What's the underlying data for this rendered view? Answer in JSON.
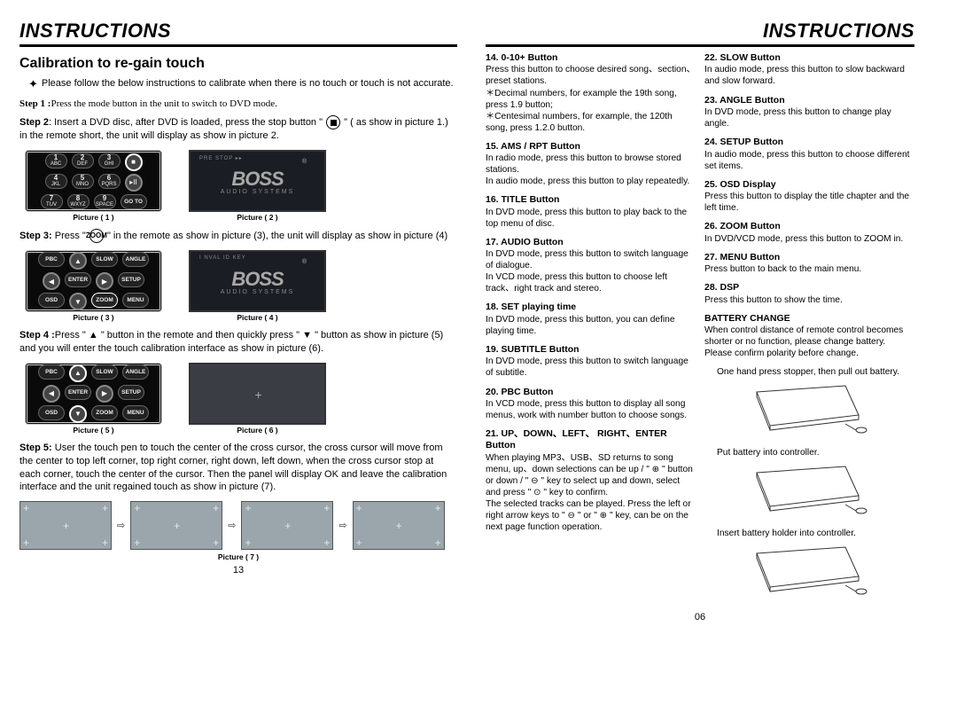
{
  "left": {
    "header": "INSTRUCTIONS",
    "subhead": "Calibration to re-gain touch",
    "intro": "Please follow the below instructions to calibrate when there is no touch or touch is not accurate.",
    "step1_label": "Step 1 :",
    "step1": "Press the mode button in the unit to switch to DVD mode.",
    "step2_label": "Step 2",
    "step2_a": ": Insert a DVD disc, after DVD is loaded, press the stop button  \" ",
    "step2_b": " \" ( as show in picture 1.) in the remote short, the unit will display as show in picture 2.",
    "step3_label": "Step 3:",
    "step3_a": " Press \" ",
    "step3_b": " \" in the remote as show in picture (3), the unit will display as show in picture (4)",
    "step4_label": "Step 4 :",
    "step4": "Press \" ▲ \" button in the remote and then quickly press \" ▼ \" button as show in picture (5)  and you will enter the touch calibration interface as show in picture (6).",
    "step5_label": "Step 5:",
    "step5": " User the touch pen to touch the center of the cross cursor, the cross cursor will move from the center to top left corner, top right corner, right down, left down, when the cross cursor stop at each corner, touch the center of the cursor.  Then the panel will display OK and leave the calibration interface and the unit regained touch as show in picture (7).",
    "pic1": "Picture ( 1 )",
    "pic2": "Picture ( 2 )",
    "pic3": "Picture ( 3 )",
    "pic4": "Picture ( 4 )",
    "pic5": "Picture ( 5 )",
    "pic6": "Picture ( 6 )",
    "pic7": "Picture ( 7 )",
    "pre_stop": "PRE  STOP  ▸▸",
    "inval": "I NVAL ID KEY",
    "boss": "BOSS",
    "audio_systems": "AUDIO SYSTEMS",
    "pagenum": "13"
  },
  "right": {
    "header": "INSTRUCTIONS",
    "pagenum": "06",
    "colA": [
      {
        "t": "14. 0-10+ Button",
        "d": "Press this button to choose desired song、section、preset stations.\n ＊Decimal numbers, for example the 19th song, press 1.9 button;\n ＊Centesimal numbers, for example, the 120th song, press 1.2.0 button."
      },
      {
        "t": "15. AMS / RPT Button",
        "d": "In radio mode, press this button to browse stored stations.\nIn audio mode, press this button to play repeatedly."
      },
      {
        "t": "16. TITLE Button",
        "d": "In DVD mode, press this button to play back to the top menu of disc."
      },
      {
        "t": "17. AUDIO Button",
        "d": "In DVD mode, press this button to switch language of dialogue.\nIn VCD mode, press this button to choose left track、right track and stereo."
      },
      {
        "t": "18. SET playing time",
        "d": "In DVD mode, press this button, you can define playing time."
      },
      {
        "t": "19. SUBTITLE Button",
        "d": "In DVD mode, press this button to switch language of subtitle."
      },
      {
        "t": "20. PBC Button",
        "d": "In VCD mode, press this button to display all song menus, work with number button to choose songs."
      },
      {
        "t": "21. UP、DOWN、LEFT、 RIGHT、ENTER Button",
        "d": "When playing MP3、USB、SD returns to song menu, up、down selections can be up / \" ⊕ \" button or down / \" ⊖ \" key to select up and down, select and press \" ⊙ \" key to confirm.\nThe selected tracks can be played. Press the left or right arrow keys to \" ⊖ \" or \" ⊕ \" key, can be on the next page function operation."
      }
    ],
    "colB": [
      {
        "t": "22. SLOW Button",
        "d": "In audio mode, press this button to slow backward and slow forward."
      },
      {
        "t": "23. ANGLE Button",
        "d": "In DVD mode, press this button to change play angle."
      },
      {
        "t": "24. SETUP Button",
        "d": "In audio mode, press this button to choose different set items."
      },
      {
        "t": "25. OSD Display",
        "d": "Press this button to display the title chapter and the left time."
      },
      {
        "t": "26. ZOOM Button",
        "d": "In DVD/VCD mode, press this button to ZOOM in."
      },
      {
        "t": "27. MENU Button",
        "d": "Press button to back to the main menu."
      },
      {
        "t": "28. DSP",
        "d": "Press this button to show the time."
      },
      {
        "t": "BATTERY CHANGE",
        "d": "When control distance of remote control becomes shorter or no function, please change battery. Please confirm polarity before change."
      }
    ],
    "batt1": "One hand press stopper, then pull out battery.",
    "batt2": "Put battery into controller.",
    "batt3": "Insert battery holder into controller."
  }
}
